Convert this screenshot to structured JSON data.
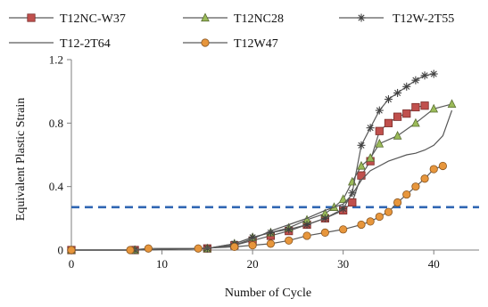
{
  "chart_data": {
    "type": "line",
    "xlabel": "Number of  Cycle",
    "ylabel": "Equivalent  Plastic Strain",
    "xlim": [
      0,
      45
    ],
    "ylim": [
      0,
      1.2
    ],
    "x_ticks": [
      "0",
      "10",
      "20",
      "30",
      "40"
    ],
    "y_ticks": [
      "0",
      "0.4",
      "0.8",
      "1.2"
    ],
    "grid": false,
    "legend_position": "top",
    "reference_line": {
      "y": 0.27,
      "style": "dashed",
      "color": "#2F66B3"
    },
    "series": [
      {
        "name": "T12NC-W37",
        "marker": "square",
        "color": "#C0504D",
        "x": [
          0,
          7,
          15,
          18,
          20,
          22,
          24,
          26,
          28,
          30,
          31,
          32,
          33,
          34,
          35,
          36,
          37,
          38,
          39
        ],
        "y": [
          0,
          0,
          0.01,
          0.03,
          0.06,
          0.09,
          0.12,
          0.16,
          0.2,
          0.25,
          0.3,
          0.47,
          0.56,
          0.75,
          0.8,
          0.84,
          0.86,
          0.9,
          0.91
        ]
      },
      {
        "name": "T12NC28",
        "marker": "triangle",
        "color": "#9BBB59",
        "x": [
          0,
          7,
          15,
          18,
          20,
          22,
          24,
          26,
          28,
          29,
          30,
          31,
          32,
          33,
          34,
          36,
          38,
          40,
          42
        ],
        "y": [
          0,
          0,
          0.01,
          0.04,
          0.08,
          0.11,
          0.14,
          0.19,
          0.23,
          0.27,
          0.32,
          0.43,
          0.53,
          0.58,
          0.67,
          0.72,
          0.8,
          0.89,
          0.92
        ]
      },
      {
        "name": "T12W-2T55",
        "marker": "star",
        "color": "#404040",
        "x": [
          0,
          7,
          15,
          18,
          20,
          22,
          24,
          26,
          28,
          30,
          31,
          32,
          33,
          34,
          35,
          36,
          37,
          38,
          39,
          40
        ],
        "y": [
          0,
          0,
          0.01,
          0.04,
          0.08,
          0.11,
          0.13,
          0.16,
          0.2,
          0.26,
          0.36,
          0.66,
          0.77,
          0.88,
          0.95,
          0.99,
          1.03,
          1.07,
          1.1,
          1.11
        ]
      },
      {
        "name": "T12-2T64",
        "marker": "none",
        "color": "#404040",
        "x": [
          0,
          7,
          15,
          18,
          20,
          22,
          24,
          26,
          28,
          30,
          31,
          32,
          33,
          34,
          35,
          36,
          37,
          38,
          39,
          40,
          41,
          42
        ],
        "y": [
          0,
          0,
          0.01,
          0.03,
          0.07,
          0.12,
          0.16,
          0.2,
          0.25,
          0.29,
          0.35,
          0.44,
          0.5,
          0.53,
          0.56,
          0.58,
          0.6,
          0.61,
          0.63,
          0.66,
          0.72,
          0.88
        ]
      },
      {
        "name": "T12W47",
        "marker": "circle",
        "color": "#E7963C",
        "x": [
          0,
          6.5,
          8.5,
          14,
          18,
          20,
          22,
          24,
          26,
          28,
          30,
          32,
          33,
          34,
          35,
          36,
          37,
          38,
          39,
          40,
          41
        ],
        "y": [
          0,
          0,
          0.01,
          0.01,
          0.02,
          0.03,
          0.04,
          0.06,
          0.09,
          0.11,
          0.13,
          0.16,
          0.18,
          0.21,
          0.24,
          0.3,
          0.35,
          0.4,
          0.45,
          0.51,
          0.53
        ]
      }
    ]
  }
}
